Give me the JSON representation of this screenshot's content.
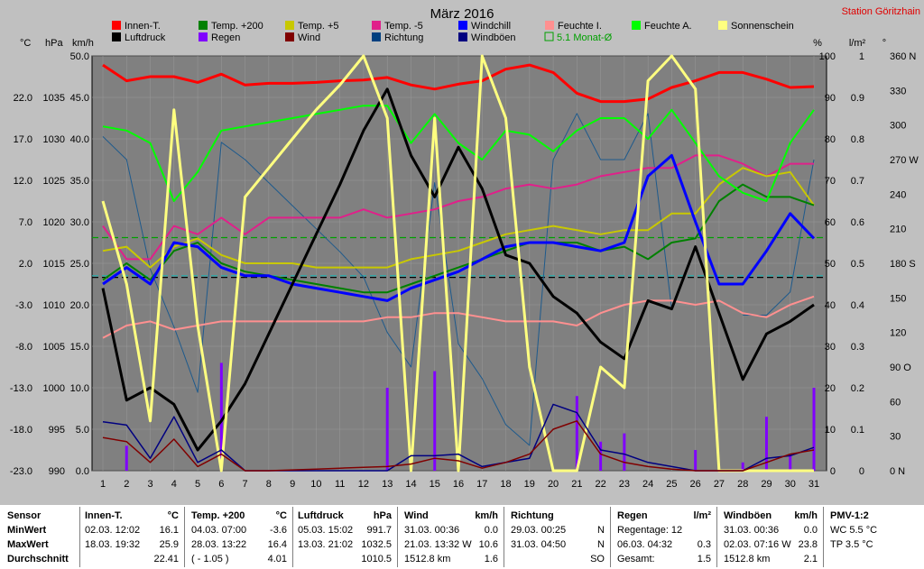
{
  "chart_data": {
    "type": "line",
    "title": "März 2016",
    "station": "Station Göritzhain",
    "x": [
      1,
      2,
      3,
      4,
      5,
      6,
      7,
      8,
      9,
      10,
      11,
      12,
      13,
      14,
      15,
      16,
      17,
      18,
      19,
      20,
      21,
      22,
      23,
      24,
      25,
      26,
      27,
      28,
      29,
      30,
      31
    ],
    "axes": {
      "temp": {
        "unit": "°C",
        "ticks": [
          22.0,
          17.0,
          12.0,
          7.0,
          2.0,
          -3.0,
          -8.0,
          -13.0,
          -18.0,
          -23.0
        ],
        "range": [
          -23,
          27
        ]
      },
      "hpa": {
        "unit": "hPa",
        "ticks": [
          1035,
          1030,
          1025,
          1020,
          1015,
          1010,
          1005,
          1000,
          995,
          990
        ],
        "range": [
          990,
          1040
        ]
      },
      "kmh": {
        "unit": "km/h",
        "ticks": [
          "50.0",
          "45.0",
          "40.0",
          "35.0",
          "30.0",
          "25.0",
          "20.0",
          "15.0",
          "10.0",
          "5.0",
          "0.0"
        ],
        "range": [
          0,
          50
        ]
      },
      "pct": {
        "unit": "%",
        "ticks": [
          100,
          90,
          80,
          70,
          60,
          50,
          40,
          30,
          20,
          10,
          0
        ],
        "range": [
          0,
          100
        ]
      },
      "rain": {
        "unit": "l/m²",
        "ticks": [
          "1",
          "0.9",
          "0.8",
          "0.7",
          "0.6",
          "0.5",
          "0.4",
          "0.3",
          "0.2",
          "0.1",
          "0"
        ],
        "range": [
          0,
          1
        ]
      },
      "dir": {
        "unit": "°",
        "ticks": [
          "360 N",
          "330",
          "300",
          "270 W",
          "240",
          "210",
          "180 S",
          "150",
          "120",
          "90 O",
          "60",
          "30",
          "0 N"
        ],
        "range": [
          0,
          360
        ]
      }
    },
    "legend": [
      {
        "name": "Innen-T.",
        "color": "#ff0000"
      },
      {
        "name": "Temp. +200",
        "color": "#008000"
      },
      {
        "name": "Temp. +5",
        "color": "#c8c800"
      },
      {
        "name": "Temp. -5",
        "color": "#e0208a"
      },
      {
        "name": "Windchill",
        "color": "#0000ff"
      },
      {
        "name": "Feuchte I.",
        "color": "#ff9090"
      },
      {
        "name": "Feuchte A.",
        "color": "#00ff00"
      },
      {
        "name": "Sonnenschein",
        "color": "#ffff80"
      },
      {
        "name": "Luftdruck",
        "color": "#000000"
      },
      {
        "name": "Regen",
        "color": "#8000ff"
      },
      {
        "name": "Wind",
        "color": "#800000"
      },
      {
        "name": "Richtung",
        "color": "#004080"
      },
      {
        "name": "Windböen",
        "color": "#000080"
      },
      {
        "name": "5.1 Monat-Ø",
        "color": "#00a000"
      }
    ],
    "series": [
      {
        "name": "Richtung",
        "axis": "dir",
        "color": "#1e5a8c",
        "width": 1,
        "values": [
          290,
          270,
          175,
          125,
          68,
          285,
          270,
          250,
          230,
          210,
          190,
          168,
          120,
          90,
          250,
          110,
          80,
          40,
          22,
          270,
          310,
          270,
          270,
          310,
          140,
          null,
          null,
          135,
          135,
          155,
          270
        ]
      },
      {
        "name": "Feuchte I.",
        "axis": "pct",
        "color": "#ff9090",
        "width": 2,
        "values": [
          32,
          35,
          36,
          34,
          35,
          36,
          36,
          36,
          36,
          36,
          36,
          36,
          37,
          37,
          38,
          38,
          37,
          36,
          36,
          36,
          35,
          38,
          40,
          41,
          41,
          40,
          41,
          38,
          37,
          40,
          42
        ]
      },
      {
        "name": "Temp. -5",
        "axis": "temp",
        "color": "#e0208a",
        "width": 2,
        "values": [
          6.5,
          2.5,
          2.5,
          6.5,
          5.5,
          7.5,
          5.5,
          7.5,
          7.5,
          7.5,
          7.5,
          8.5,
          7.5,
          8.0,
          8.5,
          9.5,
          10.0,
          11.0,
          11.5,
          11.0,
          11.5,
          12.5,
          13.0,
          13.5,
          13.5,
          15.0,
          15.0,
          14.0,
          12.5,
          14.0,
          14.0
        ]
      },
      {
        "name": "Temp. +5",
        "axis": "temp",
        "color": "#c8c800",
        "width": 2,
        "values": [
          3.5,
          4.0,
          1.5,
          4.0,
          5.0,
          3.0,
          2.0,
          2.0,
          2.0,
          1.5,
          1.5,
          1.5,
          1.5,
          2.5,
          3.0,
          3.5,
          4.5,
          5.5,
          6.0,
          6.5,
          6.0,
          5.5,
          6.0,
          6.0,
          8.0,
          8.0,
          11.5,
          13.5,
          12.5,
          13.0,
          9.0
        ]
      },
      {
        "name": "Temp. +200",
        "axis": "temp",
        "color": "#008000",
        "width": 2,
        "values": [
          0.0,
          2.0,
          0.0,
          3.5,
          4.5,
          2.0,
          1.0,
          0.5,
          0.0,
          -0.5,
          -1.0,
          -1.5,
          -1.5,
          -0.5,
          0.5,
          1.5,
          2.5,
          3.5,
          4.5,
          4.5,
          4.5,
          3.5,
          4.0,
          2.5,
          4.5,
          5.0,
          9.5,
          11.5,
          10.0,
          10.0,
          9.0
        ]
      },
      {
        "name": "Windchill",
        "axis": "temp",
        "color": "#0000ff",
        "width": 3,
        "values": [
          -0.5,
          1.5,
          -0.5,
          4.5,
          4.0,
          1.5,
          0.5,
          0.5,
          -0.5,
          -1.0,
          -1.5,
          -2.0,
          -2.5,
          -1.0,
          0.0,
          1.0,
          2.5,
          4.0,
          4.5,
          4.5,
          4.0,
          3.5,
          4.5,
          12.5,
          15.0,
          7.0,
          -0.5,
          -0.5,
          3.5,
          8.0,
          5.0
        ]
      },
      {
        "name": "Innen-T.",
        "axis": "temp",
        "color": "#ff0000",
        "width": 3,
        "values": [
          25.9,
          24.0,
          24.5,
          24.5,
          23.8,
          24.8,
          23.5,
          23.7,
          23.7,
          23.8,
          24.0,
          24.1,
          24.4,
          23.5,
          23.0,
          23.6,
          24.0,
          25.4,
          25.9,
          25.0,
          22.5,
          21.5,
          21.5,
          21.8,
          23.2,
          24.0,
          25.0,
          25.0,
          24.2,
          23.2,
          23.3
        ]
      },
      {
        "name": "Feuchte A.",
        "axis": "pct",
        "color": "#00ff00",
        "width": 2,
        "values": [
          83,
          82,
          79,
          65,
          72,
          82,
          83,
          84,
          85,
          86,
          87,
          88,
          88,
          79,
          86,
          79,
          75,
          82,
          81,
          77,
          82,
          85,
          85,
          80,
          87,
          79,
          71,
          67,
          65,
          79,
          87
        ]
      },
      {
        "name": "Luftdruck",
        "axis": "hpa",
        "color": "#000000",
        "width": 3,
        "values": [
          1012,
          998.5,
          1000,
          998,
          992.5,
          996,
          1000.5,
          1006.5,
          1012.5,
          1018.5,
          1024.5,
          1031,
          1036,
          1028,
          1023,
          1029,
          1024,
          1016,
          1015,
          1011,
          1009,
          1005.5,
          1003.5,
          1010.5,
          1009.5,
          1017,
          1009,
          1001,
          1006.5,
          1008,
          1010
        ]
      },
      {
        "name": "Sonnenschein",
        "axis": "pct",
        "color": "#ffff80",
        "width": 3,
        "values": [
          65,
          45,
          12,
          87,
          35,
          0,
          66,
          73,
          80,
          87,
          93,
          100,
          85,
          0,
          85,
          0,
          100,
          85,
          25,
          0,
          0,
          25,
          20,
          94,
          100,
          92,
          0,
          0,
          0,
          0,
          0
        ]
      },
      {
        "name": "Windböen",
        "axis": "kmh",
        "color": "#000080",
        "width": 1.5,
        "values": [
          5.9,
          5.5,
          1.5,
          6.5,
          1.0,
          2.5,
          0,
          0,
          0,
          0,
          0,
          0,
          0,
          1.8,
          1.8,
          2.0,
          0.5,
          1.0,
          1.5,
          8.0,
          7.0,
          2.5,
          2.0,
          1.0,
          0.5,
          0,
          0,
          0,
          1.5,
          1.8,
          2.8
        ]
      },
      {
        "name": "Wind",
        "axis": "kmh",
        "color": "#800000",
        "width": 1.5,
        "values": [
          4.0,
          3.5,
          1.0,
          3.8,
          0.5,
          2.0,
          0,
          0,
          0.1,
          0.2,
          0.3,
          0.4,
          0.5,
          0.8,
          1.5,
          1.2,
          0.3,
          1.0,
          2.0,
          5.0,
          6.0,
          2.0,
          1.0,
          0.5,
          0.2,
          0,
          0,
          0,
          1.0,
          2.0,
          2.5
        ]
      }
    ],
    "rain_bars": {
      "name": "Regen",
      "axis": "rain",
      "color": "#8000ff",
      "values": [
        0,
        0.06,
        0,
        0,
        0,
        0.26,
        0,
        0,
        0,
        0,
        0,
        0,
        0.2,
        0,
        0.24,
        0,
        0,
        0,
        0,
        0,
        0.18,
        0.07,
        0.09,
        0,
        0,
        0.05,
        0,
        0.02,
        0.13,
        0.04,
        0.2
      ]
    },
    "ref_lines": [
      {
        "name": "5.1 Monat-Ø",
        "axis": "temp",
        "value": 5.1,
        "color": "#00a000",
        "style": "dashed"
      },
      {
        "name": "pressure mean",
        "axis": "hpa",
        "value": 1013.3,
        "color": "#000000",
        "style": "dashed"
      },
      {
        "name": "humidity mean",
        "axis": "pct",
        "value": 47,
        "color": "#20b0b0",
        "style": "dashed"
      }
    ]
  },
  "stats": {
    "rowlabels": {
      "sensor": "Sensor",
      "min": "MinWert",
      "max": "MaxWert",
      "avg": "Durchschnitt"
    },
    "innen": {
      "title": "Innen-T.",
      "unit": "°C",
      "min_t": "02.03.  12:02",
      "min_v": "16.1",
      "max_t": "18.03.  19:32",
      "max_v": "25.9",
      "avg": "22.41"
    },
    "temp": {
      "title": "Temp. +200",
      "unit": "°C",
      "min_t": "04.03.  07:00",
      "min_v": "-3.6",
      "max_t": "28.03.  13:22",
      "max_v": "16.4",
      "avg_t": "( - 1.05 )",
      "avg": "4.01"
    },
    "luft": {
      "title": "Luftdruck",
      "unit": "hPa",
      "min_t": "05.03.  15:02",
      "min_v": "991.7",
      "max_t": "13.03.  21:02",
      "max_v": "1032.5",
      "avg": "1010.5"
    },
    "wind": {
      "title": "Wind",
      "unit": "km/h",
      "min_t": "31.03.  00:36",
      "min_v": "0.0",
      "max_t": "21.03.  13:32  W",
      "max_v": "10.6",
      "avg_t": "1512.8 km",
      "avg": "1.6"
    },
    "richt": {
      "title": "Richtung",
      "min_t": "29.03.  00:25",
      "min_v": "N",
      "max_t": "31.03.  04:50",
      "max_v": "N",
      "avg": "SO"
    },
    "regen": {
      "title": "Regen",
      "unit": "l/m²",
      "min_t": "Regentage: 12",
      "max_t": "06.03.  04:32",
      "max_v": "0.3",
      "avg_t": "Gesamt:",
      "avg": "1.5"
    },
    "boen": {
      "title": "Windböen",
      "unit": "km/h",
      "min_t": "31.03.  00:36",
      "min_v": "0.0",
      "max_t": "02.03.  07:16  W",
      "max_v": "23.8",
      "avg_t": "1512.8 km",
      "avg": "2.1"
    },
    "pmv": {
      "title": "PMV-1:2",
      "l1": "WC 5.5 °C",
      "l2": "TP 3.5 °C"
    }
  }
}
